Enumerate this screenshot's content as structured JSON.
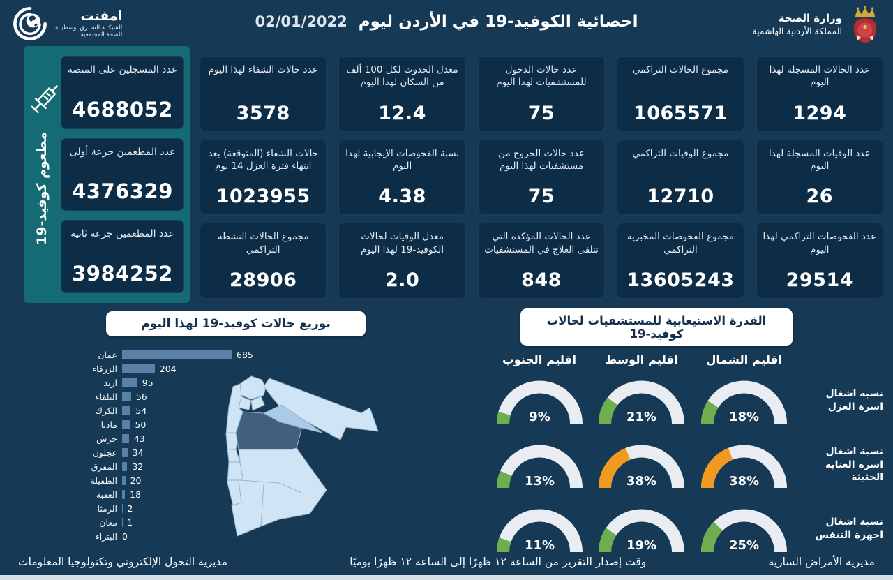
{
  "header": {
    "emphnet": {
      "name": "امفنت",
      "line1": "الشبكــة الشــرق أوسطيــة",
      "line2": "للصحة المجتمعية"
    },
    "title": "احصائية الكوفيد-19 في الأردن ليوم",
    "date": "02/01/2022",
    "ministry": {
      "line1": "وزارة الصحة",
      "line2": "المملكة الأردنية الهاشمية"
    }
  },
  "vaccine_panel": {
    "vertical_label": "مطعوم كوفيد-19",
    "cards": [
      {
        "label": "عدد المسجلين على المنصة",
        "value": "4688052"
      },
      {
        "label": "عدد المطعمين جرعة أولى",
        "value": "4376329"
      },
      {
        "label": "عدد المطعمين جرعة ثانية",
        "value": "3984252"
      }
    ]
  },
  "stats_grid": {
    "cards": [
      {
        "label": "عدد الحالات المسجلة لهذا اليوم",
        "value": "1294"
      },
      {
        "label": "مجموع الحالات التراكمي",
        "value": "1065571"
      },
      {
        "label": "عدد حالات الدخول للمستشفيات لهذا اليوم",
        "value": "75"
      },
      {
        "label": "معدل الحدوث لكل 100 ألف من السكان لهذا اليوم",
        "value": "12.4"
      },
      {
        "label": "عدد حالات الشفاء لهذا اليوم",
        "value": "3578"
      },
      {
        "label": "عدد الوفيات المسجلة لهذا اليوم",
        "value": "26"
      },
      {
        "label": "مجموع الوفيات التراكمي",
        "value": "12710"
      },
      {
        "label": "عدد حالات الخروج من مستشفيات لهذا اليوم",
        "value": "75"
      },
      {
        "label": "نسبة الفحوصات الإيجابية لهذا اليوم",
        "value": "4.38"
      },
      {
        "label": "حالات الشفاء (المتوقعة) بعد انتهاء فترة العزل 14 يوم",
        "value": "1023955"
      },
      {
        "label": "عدد الفحوصات التراكمي لهذا اليوم",
        "value": "29514"
      },
      {
        "label": "مجموع الفحوصات المخبرية التراكمي",
        "value": "13605243"
      },
      {
        "label": "عدد الحالات المؤكدة التي تتلقى العلاج في المستشفيات",
        "value": "848"
      },
      {
        "label": "معدل الوفيات لحالات الكوفيد-19 لهذا اليوم",
        "value": "2.0"
      },
      {
        "label": "مجموع الحالات النشطة التراكمي",
        "value": "28906"
      }
    ]
  },
  "chart_data": [
    {
      "type": "bar",
      "orientation": "horizontal",
      "title": "توزيع حالات كوفيد-19 لهذا اليوم",
      "categories": [
        "عمان",
        "الزرقاء",
        "اربد",
        "البلقاء",
        "الكرك",
        "مادبا",
        "جرش",
        "عجلون",
        "المفرق",
        "الطفيلة",
        "العقبة",
        "الرمثا",
        "معان",
        "البتراء"
      ],
      "values": [
        685,
        204,
        95,
        56,
        54,
        50,
        43,
        34,
        32,
        20,
        18,
        2,
        1,
        0
      ],
      "xlabel": "",
      "ylabel": "",
      "value_labels": true,
      "bar_color": "#5d81a6"
    },
    {
      "type": "gauge-grid",
      "title": "القدرة الاستيعابية للمستشفيات لحالات كوفيد-19",
      "columns": [
        "اقليم الجنوب",
        "اقليم الوسط",
        "اقليم الشمال"
      ],
      "unit": "%",
      "range": [
        0,
        100
      ],
      "rows": [
        {
          "label": "نسبة اشغال اسرة العزل",
          "values": [
            9,
            21,
            18
          ],
          "colors": [
            "#6fae4e",
            "#6fae4e",
            "#6fae4e"
          ]
        },
        {
          "label": "نسبة اشغال اسرة العناية الحثيثة",
          "values": [
            13,
            38,
            38
          ],
          "colors": [
            "#6fae4e",
            "#f2991f",
            "#f2991f"
          ]
        },
        {
          "label": "نسبة اشغال اجهزة التنفس",
          "values": [
            11,
            19,
            25
          ],
          "colors": [
            "#6fae4e",
            "#6fae4e",
            "#6fae4e"
          ]
        }
      ]
    }
  ],
  "footer": {
    "right": "مديرية الأمراض السارية",
    "center": "وقت إصدار التقرير من الساعة ١٢ ظهرًا إلى الساعة ١٢ ظهرًا يوميًا",
    "left": "مديرية التحول الإلكتروني وتكنولوجيا المعلومات"
  },
  "colors": {
    "background": "#163956",
    "card": "#0d2c46",
    "sidebar_teal": "#156b74",
    "bar": "#5d81a6",
    "gauge_track": "#e9edf1",
    "gauge_green": "#6fae4e",
    "gauge_orange": "#f2991f",
    "map_light": "#cfe4f5",
    "map_medium": "#a9cbe8",
    "map_dark": "#41607f"
  }
}
